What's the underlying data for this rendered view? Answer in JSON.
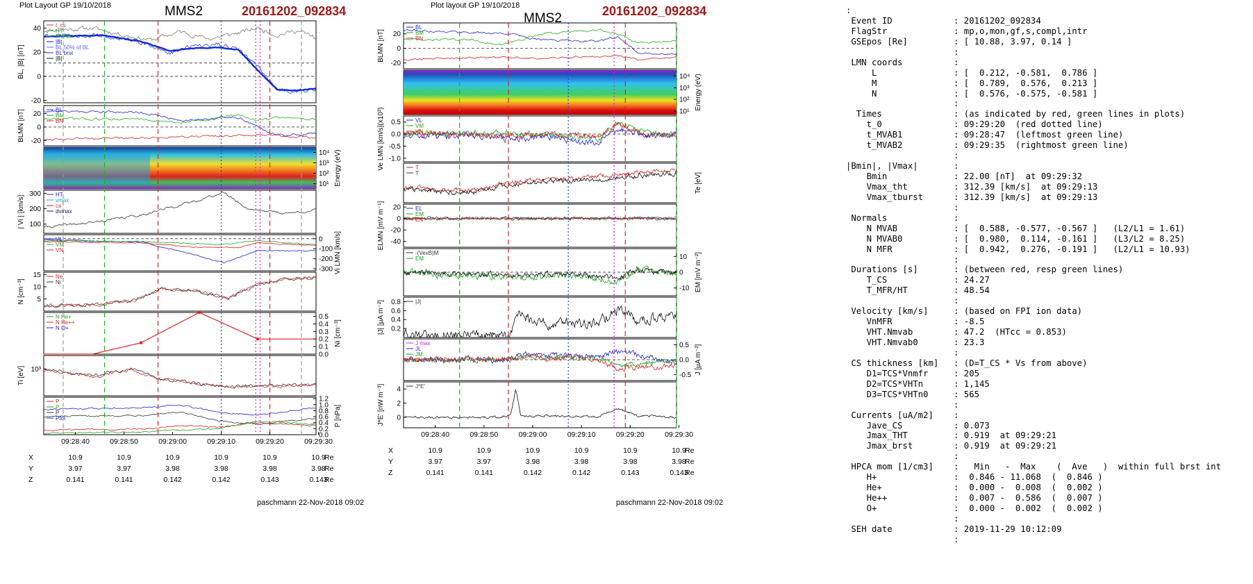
{
  "left_panel": {
    "layout_label": "Plot Layout GP 19/10/2018",
    "spacecraft": "MMS2",
    "event": "20161202_092834",
    "footer": "paschmann 22-Nov-2018 09:02",
    "x_ticks": [
      "09:28:40",
      "09:28:50",
      "09:29:00",
      "09:29:10",
      "09:29:20",
      "09:29:30"
    ],
    "positions": {
      "X": [
        "10.9",
        "10.9",
        "10.9",
        "10.9",
        "10.9",
        "10.9"
      ],
      "Y": [
        "3.97",
        "3.97",
        "3.98",
        "3.98",
        "3.98",
        "3.98"
      ],
      "Z": [
        "0.141",
        "0.141",
        "0.142",
        "0.142",
        "0.143",
        "0.143"
      ],
      "unit": "Re"
    },
    "panels": [
      {
        "id": "bl",
        "ylabel": "BL,|B| [nT]",
        "yticks": [
          "40",
          "20",
          "0",
          "-20"
        ],
        "legend": [
          "t_cs",
          "HT",
          "MVAB",
          "|B|",
          "BL 50% of BL",
          "BL brst",
          "|B|"
        ]
      },
      {
        "id": "blmn",
        "ylabel": "BLMN [nT]",
        "yticks": [
          "20",
          "0",
          "-20"
        ],
        "legend": [
          "BL",
          "BM",
          "BN"
        ]
      },
      {
        "id": "ion_spec",
        "ylabel": "Energy (eV)",
        "yticks": [
          "10^4",
          "10^3",
          "10^2",
          "10^1"
        ]
      },
      {
        "id": "vi_mag",
        "ylabel": "| Vi | [km/s]",
        "yticks": [
          "300",
          "200",
          "100"
        ],
        "legend": [
          "HT",
          "vmax",
          "cs",
          "dvmax"
        ]
      },
      {
        "id": "vi_lmn",
        "ylabel": "Vi LMN [km/s]",
        "yticks": [
          "0",
          "-100",
          "-200",
          "-300"
        ],
        "legend": [
          "VL",
          "VM",
          "VN"
        ]
      },
      {
        "id": "density",
        "ylabel": "N [cm-3]",
        "yticks": [
          "15",
          "10",
          "5"
        ],
        "legend": [
          "Ne",
          "Ni"
        ]
      },
      {
        "id": "hpca",
        "ylabel": "Ni [cm-3]",
        "yticks": [
          "0.5",
          "0.4",
          "0.3",
          "0.2",
          "0.1",
          "0.0"
        ],
        "legend": [
          "N He+",
          "N He++",
          "N O+"
        ]
      },
      {
        "id": "ti",
        "ylabel": "Ti [eV]",
        "yticks": [
          "10^3"
        ]
      },
      {
        "id": "pressure",
        "ylabel": "P [nPa]",
        "yticks": [
          "1.2",
          "1.0",
          "0.8",
          "0.6",
          "0.4",
          "0.2",
          "0.0"
        ],
        "legend": [
          "P",
          "P",
          "P",
          "Ptot"
        ]
      }
    ]
  },
  "right_panel": {
    "layout_label": "Plot layout GP 19/10/2018",
    "spacecraft": "MMS2",
    "event": "20161202_092834",
    "footer": "paschmann 22-Nov-2018 09:02",
    "x_ticks": [
      "09:28:40",
      "09:28:50",
      "09:29:00",
      "09:29:10",
      "09:29:20",
      "09:29:30"
    ],
    "positions": {
      "X": [
        "10.9",
        "10.9",
        "10.9",
        "10.9",
        "10.9",
        "10.9"
      ],
      "Y": [
        "3.97",
        "3.97",
        "3.98",
        "3.98",
        "3.98",
        "3.98"
      ],
      "Z": [
        "0.141",
        "0.141",
        "0.142",
        "0.142",
        "0.143",
        "0.143"
      ],
      "unit": "Re"
    },
    "panels": [
      {
        "id": "blmn",
        "ylabel": "BLMN [nT]",
        "yticks": [
          "20",
          "0",
          "-20"
        ],
        "legend": [
          "BL",
          "BM",
          "BN"
        ]
      },
      {
        "id": "e_spec",
        "ylabel": "Energy (eV)",
        "yticks": [
          "10^4",
          "10^3",
          "10^2",
          "10^1"
        ]
      },
      {
        "id": "ve",
        "ylabel": "Ve LMN [km/s](x10^3)",
        "yticks": [
          "0.5",
          "0.0",
          "-0.5",
          "-1.0"
        ],
        "legend": [
          "VL",
          "VM",
          "VN"
        ]
      },
      {
        "id": "te",
        "ylabel": "Te [eV]",
        "yticks": [],
        "legend": [
          "T",
          "T"
        ]
      },
      {
        "id": "elmn",
        "ylabel": "ELMN [mV m-1]",
        "yticks": [
          "20",
          "0",
          "-20",
          "-40"
        ],
        "legend": [
          "EL",
          "EM",
          "EN"
        ]
      },
      {
        "id": "em",
        "ylabel": "EM [mV m-1]",
        "yticks": [
          "10",
          "0",
          "-10"
        ],
        "legend": [
          "-(VexB)M",
          "EM"
        ]
      },
      {
        "id": "jmag",
        "ylabel": "|J| [µA m-2]",
        "yticks": [
          "0.8",
          "0.6",
          "0.4",
          "0.2"
        ],
        "legend": [
          "|J|"
        ]
      },
      {
        "id": "jlmn",
        "ylabel": "J [µA m-2]",
        "yticks": [
          "0.5",
          "0.0",
          "-0.5"
        ],
        "legend": [
          "J max",
          "JL",
          "JM",
          "JN"
        ]
      },
      {
        "id": "jdote",
        "ylabel": "J*E' [nW m-3]",
        "yticks": [
          "4",
          "2",
          "0"
        ],
        "legend": [
          "J*E'"
        ]
      }
    ]
  },
  "info_rows": [
    [
      ":",
      ""
    ],
    [
      " Event ID",
      ": 20161202_092834"
    ],
    [
      " FlagStr",
      ": mp,o,mon,gf,s,compl,intr"
    ],
    [
      " GSEpos [Re]",
      ": [ 10.88, 3.97, 0.14 ]"
    ],
    [
      "",
      ":"
    ],
    [
      " LMN coords",
      ":"
    ],
    [
      "     L",
      ": [  0.212, -0.581,  0.786 ]"
    ],
    [
      "     M",
      ": [  0.789,  0.576,  0.213 ]"
    ],
    [
      "     N",
      ": [  0.576, -0.575, -0.581 ]"
    ],
    [
      "",
      ":"
    ],
    [
      "  Times",
      ": (as indicated by red, green lines in plots)"
    ],
    [
      "    t_0",
      ": 09:29:20  (red dotted line)"
    ],
    [
      "    t_MVAB1",
      ": 09:28:47  (leftmost green line)"
    ],
    [
      "    t_MVAB2",
      ": 09:29:35  (rightmost green line)"
    ],
    [
      "",
      ":"
    ],
    [
      "|Bmin|, |Vmax|",
      ":"
    ],
    [
      "    Bmin",
      ": 22.00 [nT]  at 09:29:32"
    ],
    [
      "    Vmax_tht",
      ": 312.39 [km/s]  at 09:29:13"
    ],
    [
      "    Vmax_tburst",
      ": 312.39 [km/s]  at 09:29:13"
    ],
    [
      "",
      ":"
    ],
    [
      " Normals",
      ":"
    ],
    [
      "    N MVAB",
      ": [  0.588, -0.577, -0.567 ]   (L2/L1 = 1.61)"
    ],
    [
      "    N MVAB0",
      ": [  0.980,  0.114, -0.161 ]   (L3/L2 = 8.25)"
    ],
    [
      "    N MFR",
      ": [  0.942,  0.276, -0.191 ]   (L2/L1 = 10.93)"
    ],
    [
      "",
      ":"
    ],
    [
      " Durations [s]",
      ": (between red, resp green lines)"
    ],
    [
      "    T_CS",
      ": 24.27"
    ],
    [
      "    T_MFR/HT",
      ": 48.54"
    ],
    [
      "",
      ":"
    ],
    [
      " Velocity [km/s]",
      ": (based on FPI ion data)"
    ],
    [
      "    VnMFR",
      ": -8.5"
    ],
    [
      "    VHT.Nmvab",
      ": 47.2  (HTcc = 0.853)"
    ],
    [
      "    VHT.Nmvab0",
      ": 23.3"
    ],
    [
      "",
      ":"
    ],
    [
      " CS thickness [km]",
      ": (D=T_CS * Vs from above)"
    ],
    [
      "    D1=TCS*Vnmfr",
      ": 205"
    ],
    [
      "    D2=TCS*VHTn",
      ": 1,145"
    ],
    [
      "    D3=TCS*VHTn0",
      ": 565"
    ],
    [
      "",
      ":"
    ],
    [
      " Currents [uA/m2]",
      ":"
    ],
    [
      "    Jave_CS",
      ": 0.073"
    ],
    [
      "    Jmax_THT",
      ": 0.919  at 09:29:21"
    ],
    [
      "    Jmax_brst",
      ": 0.919  at 09:29:21"
    ],
    [
      "",
      ":"
    ],
    [
      " HPCA mom [1/cm3]",
      ":   Min   -  Max    (  Ave   )  within full brst int"
    ],
    [
      "    H+",
      ":  0.846 - 11.068  (  0.846 )"
    ],
    [
      "    He+",
      ":  0.000 -  0.008  (  0.002 )"
    ],
    [
      "    He++",
      ":  0.007 -  0.586  (  0.007 )"
    ],
    [
      "    O+",
      ":  0.000 -  0.002  (  0.002 )"
    ],
    [
      "",
      ":"
    ],
    [
      " SEH date",
      ": 2019-11-29 10:12:09"
    ],
    [
      "",
      ":"
    ]
  ],
  "chart_data": [
    {
      "type": "line",
      "title": "MMS2 20161202_092834",
      "xlabel": "",
      "x": [
        "09:28:40",
        "09:28:50",
        "09:29:00",
        "09:29:10",
        "09:29:20",
        "09:29:30"
      ],
      "series": [
        {
          "name": "BL",
          "values": [
            33,
            33,
            31,
            22,
            0,
            -12
          ]
        },
        {
          "name": "|B|",
          "values": [
            38,
            38,
            33,
            25,
            40,
            33
          ]
        }
      ],
      "ylabel": "BL,|B| [nT]",
      "ylim": [
        -20,
        45
      ],
      "grid": false,
      "legend": "top-left"
    },
    {
      "type": "line",
      "title": "MMS2 20161202_092834",
      "xlabel": "",
      "x": [
        "09:28:40",
        "09:28:50",
        "09:29:00",
        "09:29:10",
        "09:29:20",
        "09:29:30"
      ],
      "series": [
        {
          "name": "Ni",
          "values": [
            3,
            3,
            8,
            9,
            6,
            14
          ]
        },
        {
          "name": "Ne",
          "values": [
            3,
            3,
            8,
            9,
            6,
            14
          ]
        }
      ],
      "ylabel": "N [cm-3]",
      "ylim": [
        0,
        15
      ],
      "grid": false,
      "legend": "top-left"
    },
    {
      "type": "line",
      "title": "MMS2 20161202_092834",
      "xlabel": "",
      "x": [
        "09:28:40",
        "09:28:50",
        "09:29:00",
        "09:29:10",
        "09:29:20",
        "09:29:30"
      ],
      "series": [
        {
          "name": "J",
          "values": [
            0.1,
            0.1,
            0.4,
            0.45,
            0.9,
            0.4
          ]
        }
      ],
      "ylabel": "|J| [µA m-2]",
      "ylim": [
        0,
        0.9
      ],
      "grid": false,
      "legend": "top-left"
    }
  ]
}
